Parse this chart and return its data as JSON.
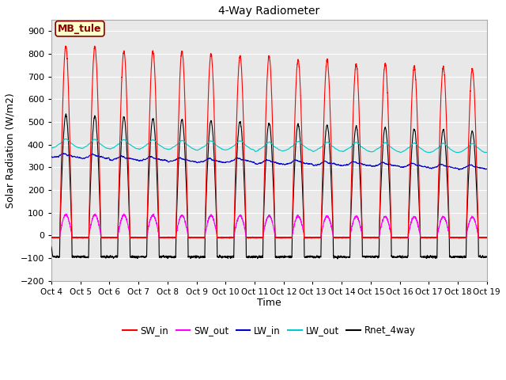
{
  "title": "4-Way Radiometer",
  "xlabel": "Time",
  "ylabel": "Solar Radiation (W/m2)",
  "ylim": [
    -200,
    950
  ],
  "yticks": [
    -200,
    -100,
    0,
    100,
    200,
    300,
    400,
    500,
    600,
    700,
    800,
    900
  ],
  "x_labels": [
    "Oct 4",
    "Oct 5",
    "Oct 6",
    "Oct 7",
    "Oct 8",
    "Oct 9",
    "Oct 10",
    "Oct 11",
    "Oct 12",
    "Oct 13",
    "Oct 14",
    "Oct 15",
    "Oct 16",
    "Oct 17",
    "Oct 18",
    "Oct 19"
  ],
  "n_days": 15,
  "points_per_day": 288,
  "SW_in_color": "#ff0000",
  "SW_out_color": "#ff00ff",
  "LW_in_color": "#0000cc",
  "LW_out_color": "#00cccc",
  "Rnet_color": "#000000",
  "annotation_text": "MB_tule",
  "annotation_bg": "#ffffcc",
  "annotation_border": "#880000",
  "plot_bg": "#e8e8e8",
  "legend_items": [
    "SW_in",
    "SW_out",
    "LW_in",
    "LW_out",
    "Rnet_4way"
  ],
  "figsize": [
    6.4,
    4.8
  ],
  "dpi": 100
}
